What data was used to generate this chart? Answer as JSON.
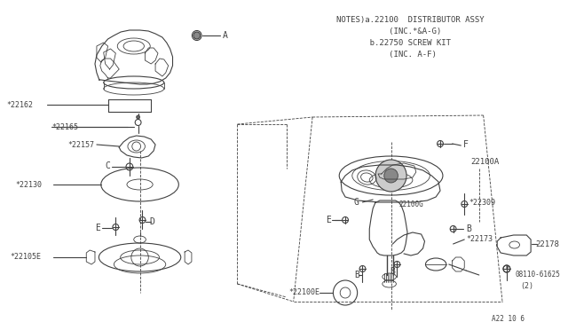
{
  "bg_color": "#ffffff",
  "line_color": "#404040",
  "notes_lines": [
    "NOTES)a.22100  DISTRIBUTOR ASSY",
    "           (INC.*&A-G)",
    "       b.22750 SCREW KIT",
    "           (INC. A-F)"
  ],
  "footer": "A22 10 6",
  "fig_w": 6.4,
  "fig_h": 3.72,
  "dpi": 100
}
